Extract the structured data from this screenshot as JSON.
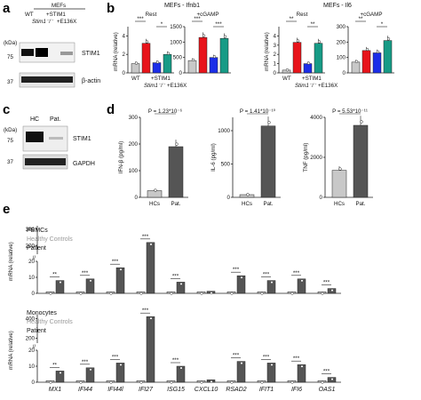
{
  "panel_labels": [
    "a",
    "b",
    "c",
    "d",
    "e"
  ],
  "panel_a": {
    "cell_type": "MEFs",
    "kda_label": "(kDa)",
    "lanes": [
      "WT",
      "+STIM1",
      "Stim1⁻/⁻",
      "+E136X"
    ],
    "markers": [
      "75",
      "37"
    ],
    "blots": [
      "STIM1",
      "β-actin"
    ]
  },
  "panel_c": {
    "lanes": [
      "HC",
      "Pat."
    ],
    "kda_label": "(kDa)",
    "markers": [
      "75",
      "37"
    ],
    "blots": [
      "STIM1",
      "GAPDH"
    ]
  },
  "chart_data": [
    {
      "id": "b-ifnb1",
      "type": "bar",
      "title": "MEFs - Ifnb1",
      "ylabel": "mRNA (relative)",
      "conditions": [
        {
          "label": "Rest",
          "values": [
            1,
            3.2,
            1.1,
            2.0
          ],
          "ylim": [
            0,
            5
          ],
          "ticks": [
            0,
            2,
            4
          ]
        },
        {
          "label": "+cGAMP",
          "values": [
            400,
            1150,
            500,
            1120
          ],
          "ylim": [
            0,
            1500
          ],
          "ticks": [
            0,
            500,
            1000,
            1500
          ]
        }
      ],
      "series": [
        "WT",
        "+STIM1",
        "Stim1⁻/⁻",
        "+E136X"
      ],
      "x_tick_labels": [
        "WT",
        "+STIM1",
        "Stim1⁻/⁻",
        "+E136X"
      ],
      "significance": [
        "***",
        "*",
        "***",
        "***"
      ]
    },
    {
      "id": "b-il6",
      "type": "bar",
      "title": "MEFs - Il6",
      "ylabel": "mRNA (relative)",
      "conditions": [
        {
          "label": "Rest",
          "values": [
            0.3,
            3.3,
            1.0,
            3.2
          ],
          "ylim": [
            0,
            5
          ],
          "ticks": [
            0,
            1,
            2,
            3,
            4
          ]
        },
        {
          "label": "+cGAMP",
          "values": [
            70,
            145,
            130,
            210
          ],
          "ylim": [
            0,
            300
          ],
          "ticks": [
            0,
            100,
            200,
            300
          ]
        }
      ],
      "series": [
        "WT",
        "+STIM1",
        "Stim1⁻/⁻",
        "+E136X"
      ],
      "x_tick_labels": [
        "WT",
        "+STIM1",
        "Stim1⁻/⁻",
        "+E136X"
      ],
      "significance": [
        "**",
        "**",
        "**",
        "*"
      ]
    },
    {
      "id": "d-ifnb",
      "type": "bar",
      "ylabel": "IFN-β (pg/ml)",
      "categories": [
        "HCs",
        "Pat."
      ],
      "values": [
        25,
        190
      ],
      "ylim": [
        0,
        300
      ],
      "ticks": [
        0,
        100,
        200,
        300
      ],
      "annotation": "P = 1.23*10⁻⁶"
    },
    {
      "id": "d-il6",
      "type": "bar",
      "ylabel": "IL-6 (pg/ml)",
      "categories": [
        "HCs",
        "Pat."
      ],
      "values": [
        40,
        1070
      ],
      "ylim": [
        0,
        1200
      ],
      "ticks": [
        0,
        500,
        1000
      ],
      "annotation": "P = 1.41*10⁻¹⁰"
    },
    {
      "id": "d-tnf",
      "type": "bar",
      "ylabel": "TNF (pg/ml)",
      "categories": [
        "HCs",
        "Pat."
      ],
      "values": [
        1350,
        3600
      ],
      "ylim": [
        0,
        4000
      ],
      "ticks": [
        0,
        2000,
        4000
      ],
      "annotation": "P = 5.53*10⁻¹¹"
    },
    {
      "id": "e-pbmc",
      "type": "bar",
      "title": "PBMCs",
      "ylabel": "mRNA (relative)",
      "categories": [
        "MX1",
        "IFI44",
        "IFI44l",
        "IFI27",
        "ISG15",
        "CXCL10",
        "RSAD2",
        "IFIT1",
        "IFI6",
        "OAS1"
      ],
      "series": [
        {
          "name": "Healthy Controls",
          "values": [
            1,
            1,
            1,
            1,
            1,
            1,
            1,
            1,
            1,
            1
          ]
        },
        {
          "name": "Patient",
          "values": [
            8,
            9,
            16,
            220,
            7,
            1.3,
            11,
            8,
            9,
            3
          ]
        }
      ],
      "yticks_lower": [
        0,
        10,
        20
      ],
      "yticks_upper": [
        200,
        300
      ],
      "significance": [
        "**",
        "***",
        "***",
        "***",
        "***",
        "",
        "***",
        "***",
        "***",
        "***"
      ]
    },
    {
      "id": "e-mono",
      "type": "bar",
      "title": "Monocytes",
      "ylabel": "mRNA (relative)",
      "categories": [
        "MX1",
        "IFI44",
        "IFI44l",
        "IFI27",
        "ISG15",
        "CXCL10",
        "RSAD2",
        "IFIT1",
        "IFI6",
        "OAS1"
      ],
      "series": [
        {
          "name": "Healthy Controls",
          "values": [
            1,
            1,
            1,
            1,
            1,
            1,
            1,
            1,
            1,
            1
          ]
        },
        {
          "name": "Patient",
          "values": [
            7,
            9,
            12,
            420,
            10,
            1.5,
            13,
            12,
            11,
            3
          ]
        }
      ],
      "yticks_lower": [
        0,
        10,
        20
      ],
      "yticks_upper": [
        200,
        400
      ],
      "significance": [
        "**",
        "***",
        "***",
        "***",
        "***",
        "",
        "***",
        "***",
        "***",
        "***"
      ]
    }
  ],
  "colors": {
    "wt": "#c8c8c8",
    "stim1": "#e8141b",
    "ko": "#1b2ee8",
    "e136x": "#179b86",
    "hc": "#c8c8c8",
    "patient": "#555555"
  }
}
